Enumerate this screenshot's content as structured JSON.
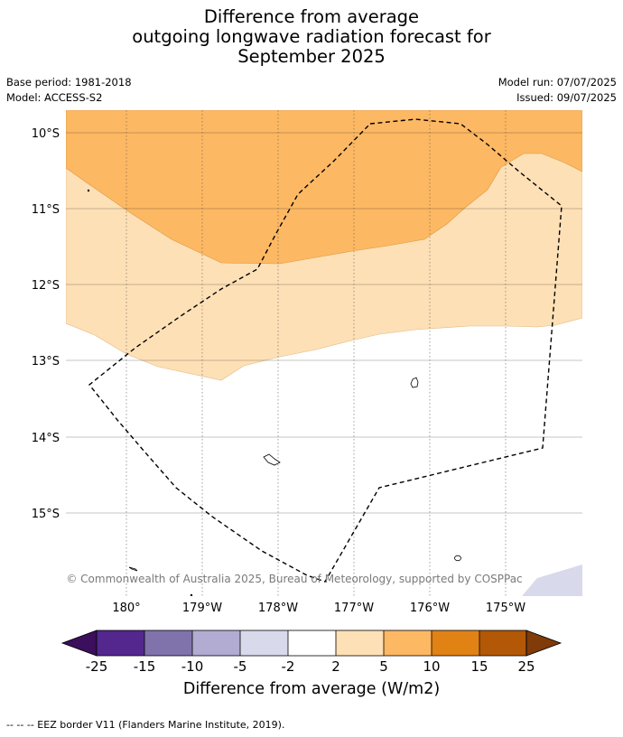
{
  "title": {
    "line1": "Difference from average",
    "line2": "outgoing longwave radiation forecast for",
    "line3": "September 2025"
  },
  "meta": {
    "base_period": "Base period: 1981-2018",
    "model": "Model: ACCESS-S2",
    "model_run": "Model run: 07/07/2025",
    "issued": "Issued: 09/07/2025"
  },
  "map": {
    "lat_labels": [
      "10°S",
      "11°S",
      "12°S",
      "13°S",
      "14°S",
      "15°S"
    ],
    "lon_labels": [
      "180°",
      "179°W",
      "178°W",
      "177°W",
      "176°W",
      "175°W"
    ],
    "copyright": "© Commonwealth of Australia 2025, Bureau of Meteorology, supported by COSPPac"
  },
  "colorbar": {
    "ticks": [
      "-25",
      "-15",
      "-10",
      "-5",
      "-2",
      "2",
      "5",
      "10",
      "15",
      "25"
    ],
    "colors": [
      "#3b0f5c",
      "#54278f",
      "#8073ac",
      "#b2abd2",
      "#d8daeb",
      "#ffffff",
      "#fee0b6",
      "#fdb863",
      "#e08214",
      "#b35806",
      "#7f3b08"
    ],
    "title": "Difference from average (W/m2)"
  },
  "footer": "--  --  -- EEZ border V11 (Flanders Marine Institute, 2019)."
}
